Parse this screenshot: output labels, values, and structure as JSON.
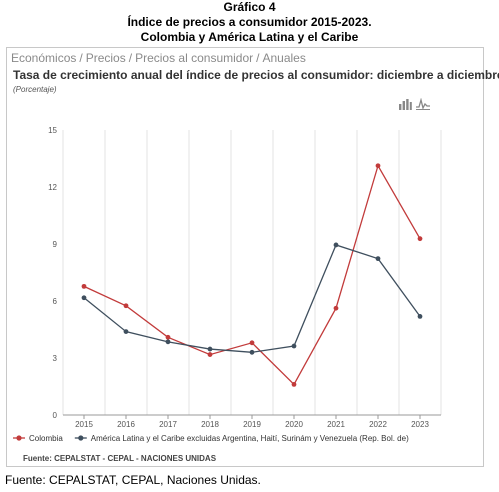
{
  "header": {
    "line1": "Gráfico 4",
    "line2": "Índice de precios a consumidor 2015-2023.",
    "line3": "Colombia y América Latina y el Caribe"
  },
  "breadcrumb": [
    "Económicos",
    "Precios",
    "Precios al consumidor",
    "Anuales"
  ],
  "breadcrumb_separator": "/",
  "toolbar": {
    "icons": [
      "bar-chart-icon",
      "line-chart-icon"
    ]
  },
  "source_note": "Fuente: CEPALSTAT - CEPAL - NACIONES UNIDAS",
  "footer": "Fuente: CEPALSTAT, CEPAL, Naciones Unidas.",
  "chart_data": {
    "type": "line",
    "title": "Tasa de crecimiento anual del índice de precios al consumidor: diciembre a diciembre",
    "subtitle": "(Porcentaje)",
    "categories": [
      "2015",
      "2016",
      "2017",
      "2018",
      "2019",
      "2020",
      "2021",
      "2022",
      "2023"
    ],
    "ylim": [
      0,
      15
    ],
    "yticks": [
      0,
      3,
      6,
      9,
      12,
      15
    ],
    "grid": "vertical",
    "legend_position": "bottom",
    "series": [
      {
        "name": "Colombia",
        "color": "#c23b3b",
        "values": [
          6.77,
          5.75,
          4.09,
          3.18,
          3.8,
          1.61,
          5.62,
          13.12,
          9.28
        ]
      },
      {
        "name": "América Latina y el Caribe excluidas Argentina, Haití, Surinám y Venezuela (Rep. Bol. de)",
        "color": "#3f4f5e",
        "values": [
          6.17,
          4.39,
          3.85,
          3.47,
          3.3,
          3.63,
          8.95,
          8.23,
          5.19
        ]
      }
    ]
  }
}
